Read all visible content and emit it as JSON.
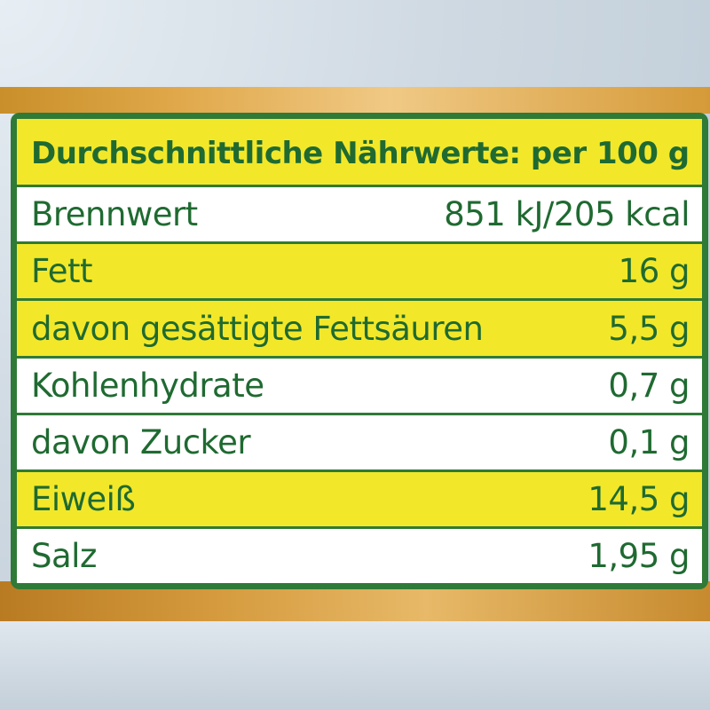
{
  "title": "Durchschnittliche Nährwerte: per 100 g",
  "rows": [
    {
      "label": "Brennwert",
      "value": "851 kJ/205 kcal",
      "highlight": false
    },
    {
      "label": "Fett",
      "value": "16 g",
      "highlight": true
    },
    {
      "label": "davon gesättigte Fettsäuren",
      "value": "5,5 g",
      "highlight": true
    },
    {
      "label": "Kohlenhydrate",
      "value": "0,7 g",
      "highlight": false
    },
    {
      "label": "davon Zucker",
      "value": "0,1 g",
      "highlight": false
    },
    {
      "label": "Eiweiß",
      "value": "14,5 g",
      "highlight": true
    },
    {
      "label": "Salz",
      "value": "1,95 g",
      "highlight": false
    }
  ],
  "colors": {
    "border": "#2f7a37",
    "text": "#1f6a31",
    "highlight": "#f2e829",
    "background": "#ffffff"
  }
}
